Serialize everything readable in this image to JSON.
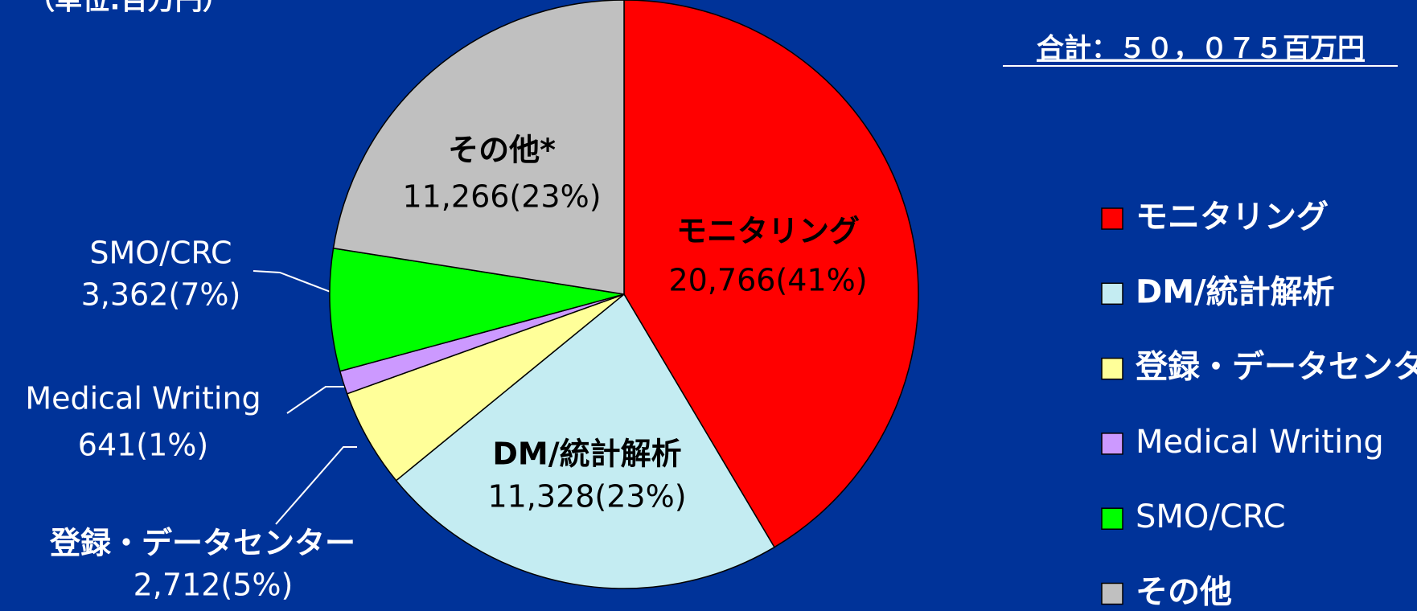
{
  "chart_data": {
    "type": "pie",
    "title": "（単位:百万円）",
    "total_label": "合計：５０，０７５百万円",
    "categories": [
      "モニタリング",
      "DM/統計解析",
      "登録・データセンター",
      "Medical Writing",
      "SMO/CRC",
      "その他"
    ],
    "slice_labels": [
      "モニタリング",
      "DM/統計解析",
      "登録・データセンター",
      "Medical Writing",
      "SMO/CRC",
      "その他*"
    ],
    "values": [
      20766,
      11328,
      2712,
      641,
      3362,
      11266
    ],
    "value_labels": [
      "20,766(41%)",
      "11,328(23%)",
      "2,712(5%)",
      "641(1%)",
      "3,362(7%)",
      "11,266(23%)"
    ],
    "colors": [
      "#ff0000",
      "#c4ecf2",
      "#ffff99",
      "#cc99ff",
      "#00ff00",
      "#c0c0c0"
    ],
    "legend": "right"
  }
}
